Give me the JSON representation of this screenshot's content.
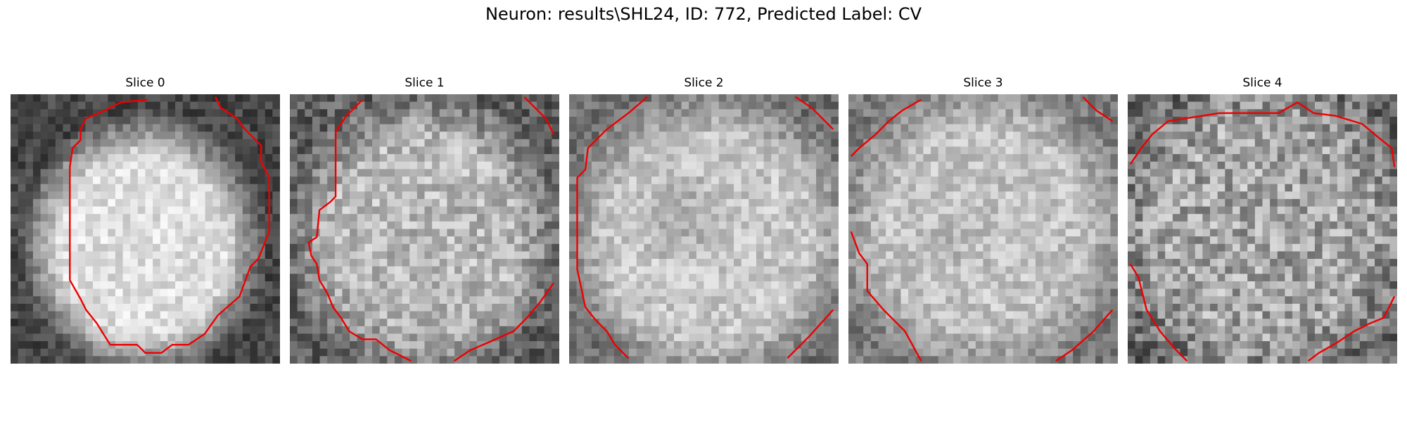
{
  "figure": {
    "title": "Neuron: results\\SHL24, ID: 772, Predicted Label: CV"
  },
  "contour_color": "#ee0000",
  "slices": [
    {
      "title": "Slice 0"
    },
    {
      "title": "Slice 1"
    },
    {
      "title": "Slice 2"
    },
    {
      "title": "Slice 3"
    },
    {
      "title": "Slice 4"
    }
  ]
}
